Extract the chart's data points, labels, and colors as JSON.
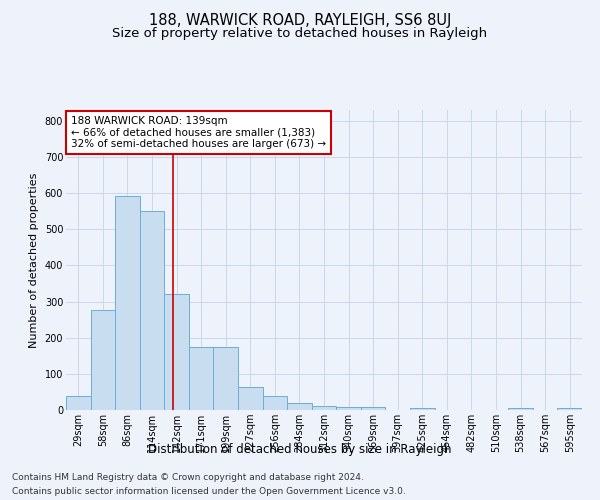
{
  "title": "188, WARWICK ROAD, RAYLEIGH, SS6 8UJ",
  "subtitle": "Size of property relative to detached houses in Rayleigh",
  "xlabel": "Distribution of detached houses by size in Rayleigh",
  "ylabel": "Number of detached properties",
  "categories": [
    "29sqm",
    "58sqm",
    "86sqm",
    "114sqm",
    "142sqm",
    "171sqm",
    "199sqm",
    "227sqm",
    "256sqm",
    "284sqm",
    "312sqm",
    "340sqm",
    "369sqm",
    "397sqm",
    "425sqm",
    "454sqm",
    "482sqm",
    "510sqm",
    "538sqm",
    "567sqm",
    "595sqm"
  ],
  "values": [
    38,
    278,
    593,
    550,
    320,
    175,
    175,
    65,
    38,
    20,
    10,
    7,
    8,
    0,
    5,
    0,
    0,
    0,
    5,
    0,
    5
  ],
  "bar_color": "#c9ddf0",
  "bar_edge_color": "#6aaed6",
  "vline_color": "#cc0000",
  "vline_index": 3.85,
  "annotation_text": "188 WARWICK ROAD: 139sqm\n← 66% of detached houses are smaller (1,383)\n32% of semi-detached houses are larger (673) →",
  "annotation_box_color": "#ffffff",
  "annotation_box_edge": "#cc0000",
  "grid_color": "#c8d8ec",
  "background_color": "#eef3fb",
  "footnote_line1": "Contains HM Land Registry data © Crown copyright and database right 2024.",
  "footnote_line2": "Contains public sector information licensed under the Open Government Licence v3.0.",
  "ylim": [
    0,
    830
  ],
  "yticks": [
    0,
    100,
    200,
    300,
    400,
    500,
    600,
    700,
    800
  ],
  "title_fontsize": 10.5,
  "subtitle_fontsize": 9.5,
  "xlabel_fontsize": 8.5,
  "ylabel_fontsize": 8,
  "tick_fontsize": 7,
  "annotation_fontsize": 7.5,
  "footnote_fontsize": 6.5
}
